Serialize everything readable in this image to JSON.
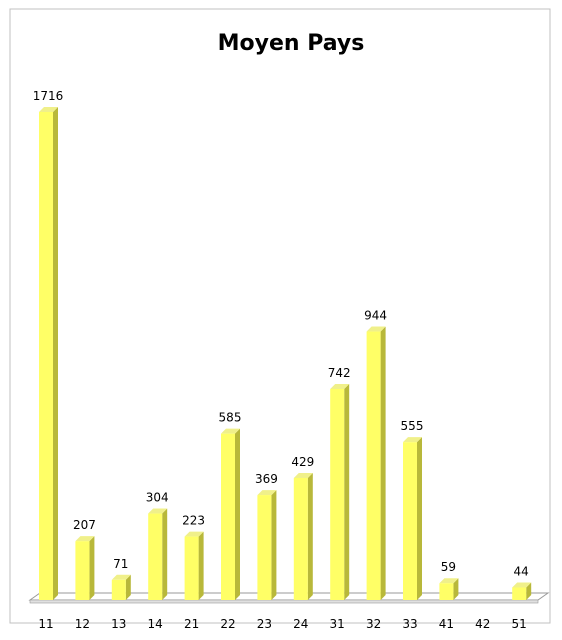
{
  "chart_data": {
    "type": "bar",
    "title": "Moyen Pays",
    "categories": [
      "11",
      "12",
      "13",
      "14",
      "21",
      "22",
      "23",
      "24",
      "31",
      "32",
      "33",
      "41",
      "42",
      "51"
    ],
    "values": [
      1716,
      207,
      71,
      304,
      223,
      585,
      369,
      429,
      742,
      944,
      555,
      59,
      null,
      44
    ],
    "data_labels": [
      "1716",
      "207",
      "71",
      "304",
      "223",
      "585",
      "369",
      "429",
      "742",
      "944",
      "555",
      "59",
      "",
      "44"
    ],
    "ylim": [
      0,
      1900
    ],
    "grid": false,
    "legend": "none",
    "colors": {
      "bar_front": "#ffff66",
      "bar_side": "#b8b83a",
      "bar_top": "#f0f08a",
      "floor": "#ffffff",
      "floor_edge": "#9a9a9a",
      "frame": "#c0c0c0"
    }
  }
}
